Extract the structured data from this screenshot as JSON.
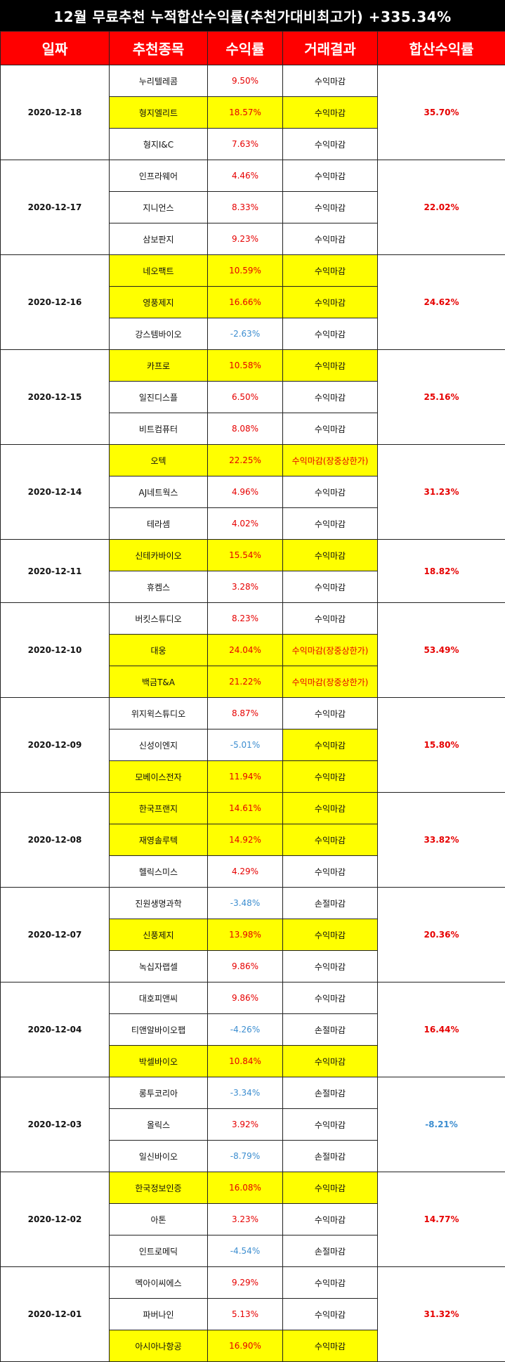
{
  "title": "12월 무료추천 누적합산수익률(추천가대비최고가) +335.34%",
  "headers": [
    "일짜",
    "추천종목",
    "수익률",
    "거래결과",
    "합산수익률"
  ],
  "groups": [
    {
      "date": "2020-12-18",
      "total": "35.70%",
      "total_neg": false,
      "rows": [
        {
          "name": "누리텔레콤",
          "rate": "9.50%",
          "neg": false,
          "result": "수익마감",
          "hl_name": false,
          "hl_result": false,
          "red_result": false
        },
        {
          "name": "형지엘리트",
          "rate": "18.57%",
          "neg": false,
          "result": "수익마감",
          "hl_name": true,
          "hl_result": true,
          "red_result": false
        },
        {
          "name": "형지I&C",
          "rate": "7.63%",
          "neg": false,
          "result": "수익마감",
          "hl_name": false,
          "hl_result": false,
          "red_result": false
        }
      ]
    },
    {
      "date": "2020-12-17",
      "total": "22.02%",
      "total_neg": false,
      "rows": [
        {
          "name": "인프라웨어",
          "rate": "4.46%",
          "neg": false,
          "result": "수익마감",
          "hl_name": false,
          "hl_result": false,
          "red_result": false
        },
        {
          "name": "지니언스",
          "rate": "8.33%",
          "neg": false,
          "result": "수익마감",
          "hl_name": false,
          "hl_result": false,
          "red_result": false
        },
        {
          "name": "삼보판지",
          "rate": "9.23%",
          "neg": false,
          "result": "수익마감",
          "hl_name": false,
          "hl_result": false,
          "red_result": false
        }
      ]
    },
    {
      "date": "2020-12-16",
      "total": "24.62%",
      "total_neg": false,
      "rows": [
        {
          "name": "네오팩트",
          "rate": "10.59%",
          "neg": false,
          "result": "수익마감",
          "hl_name": true,
          "hl_result": true,
          "red_result": false
        },
        {
          "name": "영풍제지",
          "rate": "16.66%",
          "neg": false,
          "result": "수익마감",
          "hl_name": true,
          "hl_result": true,
          "red_result": false
        },
        {
          "name": "강스템바이오",
          "rate": "-2.63%",
          "neg": true,
          "result": "수익마감",
          "hl_name": false,
          "hl_result": false,
          "red_result": false
        }
      ]
    },
    {
      "date": "2020-12-15",
      "total": "25.16%",
      "total_neg": false,
      "rows": [
        {
          "name": "카프로",
          "rate": "10.58%",
          "neg": false,
          "result": "수익마감",
          "hl_name": true,
          "hl_result": true,
          "red_result": false
        },
        {
          "name": "일진디스플",
          "rate": "6.50%",
          "neg": false,
          "result": "수익마감",
          "hl_name": false,
          "hl_result": false,
          "red_result": false
        },
        {
          "name": "비트컴퓨터",
          "rate": "8.08%",
          "neg": false,
          "result": "수익마감",
          "hl_name": false,
          "hl_result": false,
          "red_result": false
        }
      ]
    },
    {
      "date": "2020-12-14",
      "total": "31.23%",
      "total_neg": false,
      "rows": [
        {
          "name": "오텍",
          "rate": "22.25%",
          "neg": false,
          "result": "수익마감(장중상한가)",
          "hl_name": true,
          "hl_result": true,
          "red_result": true
        },
        {
          "name": "AJ네트웍스",
          "rate": "4.96%",
          "neg": false,
          "result": "수익마감",
          "hl_name": false,
          "hl_result": false,
          "red_result": false
        },
        {
          "name": "테라셈",
          "rate": "4.02%",
          "neg": false,
          "result": "수익마감",
          "hl_name": false,
          "hl_result": false,
          "red_result": false
        }
      ]
    },
    {
      "date": "2020-12-11",
      "total": "18.82%",
      "total_neg": false,
      "rows": [
        {
          "name": "신테카바이오",
          "rate": "15.54%",
          "neg": false,
          "result": "수익마감",
          "hl_name": true,
          "hl_result": true,
          "red_result": false
        },
        {
          "name": "휴켐스",
          "rate": "3.28%",
          "neg": false,
          "result": "수익마감",
          "hl_name": false,
          "hl_result": false,
          "red_result": false
        }
      ]
    },
    {
      "date": "2020-12-10",
      "total": "53.49%",
      "total_neg": false,
      "rows": [
        {
          "name": "버킷스튜디오",
          "rate": "8.23%",
          "neg": false,
          "result": "수익마감",
          "hl_name": false,
          "hl_result": false,
          "red_result": false
        },
        {
          "name": "대웅",
          "rate": "24.04%",
          "neg": false,
          "result": "수익마감(장중상한가)",
          "hl_name": true,
          "hl_result": true,
          "red_result": true
        },
        {
          "name": "백금T&A",
          "rate": "21.22%",
          "neg": false,
          "result": "수익마감(장중상한가)",
          "hl_name": true,
          "hl_result": true,
          "red_result": true
        }
      ]
    },
    {
      "date": "2020-12-09",
      "total": "15.80%",
      "total_neg": false,
      "rows": [
        {
          "name": "위지윅스튜디오",
          "rate": "8.87%",
          "neg": false,
          "result": "수익마감",
          "hl_name": false,
          "hl_result": false,
          "red_result": false
        },
        {
          "name": "신성이엔지",
          "rate": "-5.01%",
          "neg": true,
          "result": "수익마감",
          "hl_name": false,
          "hl_result": true,
          "red_result": false
        },
        {
          "name": "모베이스전자",
          "rate": "11.94%",
          "neg": false,
          "result": "수익마감",
          "hl_name": true,
          "hl_result": true,
          "red_result": false
        }
      ]
    },
    {
      "date": "2020-12-08",
      "total": "33.82%",
      "total_neg": false,
      "rows": [
        {
          "name": "한국프랜지",
          "rate": "14.61%",
          "neg": false,
          "result": "수익마감",
          "hl_name": true,
          "hl_result": true,
          "red_result": false
        },
        {
          "name": "재영솔루텍",
          "rate": "14.92%",
          "neg": false,
          "result": "수익마감",
          "hl_name": true,
          "hl_result": true,
          "red_result": false
        },
        {
          "name": "헬릭스미스",
          "rate": "4.29%",
          "neg": false,
          "result": "수익마감",
          "hl_name": false,
          "hl_result": false,
          "red_result": false
        }
      ]
    },
    {
      "date": "2020-12-07",
      "total": "20.36%",
      "total_neg": false,
      "rows": [
        {
          "name": "진원생명과학",
          "rate": "-3.48%",
          "neg": true,
          "result": "손절마감",
          "hl_name": false,
          "hl_result": false,
          "red_result": false
        },
        {
          "name": "신풍제지",
          "rate": "13.98%",
          "neg": false,
          "result": "수익마감",
          "hl_name": true,
          "hl_result": true,
          "red_result": false
        },
        {
          "name": "녹십자랩셀",
          "rate": "9.86%",
          "neg": false,
          "result": "수익마감",
          "hl_name": false,
          "hl_result": false,
          "red_result": false
        }
      ]
    },
    {
      "date": "2020-12-04",
      "total": "16.44%",
      "total_neg": false,
      "rows": [
        {
          "name": "대호피앤씨",
          "rate": "9.86%",
          "neg": false,
          "result": "수익마감",
          "hl_name": false,
          "hl_result": false,
          "red_result": false
        },
        {
          "name": "티앤알바이오팹",
          "rate": "-4.26%",
          "neg": true,
          "result": "손절마감",
          "hl_name": false,
          "hl_result": false,
          "red_result": false
        },
        {
          "name": "박셀바이오",
          "rate": "10.84%",
          "neg": false,
          "result": "수익마감",
          "hl_name": true,
          "hl_result": true,
          "red_result": false
        }
      ]
    },
    {
      "date": "2020-12-03",
      "total": "-8.21%",
      "total_neg": true,
      "rows": [
        {
          "name": "롱투코리아",
          "rate": "-3.34%",
          "neg": true,
          "result": "손절마감",
          "hl_name": false,
          "hl_result": false,
          "red_result": false
        },
        {
          "name": "올릭스",
          "rate": "3.92%",
          "neg": false,
          "result": "수익마감",
          "hl_name": false,
          "hl_result": false,
          "red_result": false
        },
        {
          "name": "일신바이오",
          "rate": "-8.79%",
          "neg": true,
          "result": "손절마감",
          "hl_name": false,
          "hl_result": false,
          "red_result": false
        }
      ]
    },
    {
      "date": "2020-12-02",
      "total": "14.77%",
      "total_neg": false,
      "rows": [
        {
          "name": "한국정보인증",
          "rate": "16.08%",
          "neg": false,
          "result": "수익마감",
          "hl_name": true,
          "hl_result": true,
          "red_result": false
        },
        {
          "name": "아톤",
          "rate": "3.23%",
          "neg": false,
          "result": "수익마감",
          "hl_name": false,
          "hl_result": false,
          "red_result": false
        },
        {
          "name": "인트로메딕",
          "rate": "-4.54%",
          "neg": true,
          "result": "손절마감",
          "hl_name": false,
          "hl_result": false,
          "red_result": false
        }
      ]
    },
    {
      "date": "2020-12-01",
      "total": "31.32%",
      "total_neg": false,
      "rows": [
        {
          "name": "멕아이씨에스",
          "rate": "9.29%",
          "neg": false,
          "result": "수익마감",
          "hl_name": false,
          "hl_result": false,
          "red_result": false
        },
        {
          "name": "파버나인",
          "rate": "5.13%",
          "neg": false,
          "result": "수익마감",
          "hl_name": false,
          "hl_result": false,
          "red_result": false
        },
        {
          "name": "아시아나항공",
          "rate": "16.90%",
          "neg": false,
          "result": "수익마감",
          "hl_name": true,
          "hl_result": true,
          "red_result": false
        }
      ]
    }
  ],
  "colors": {
    "header_bg": "#ff0000",
    "title_bg": "#000000",
    "highlight": "#ffff00",
    "positive": "#e60000",
    "negative": "#3d8ed0"
  }
}
